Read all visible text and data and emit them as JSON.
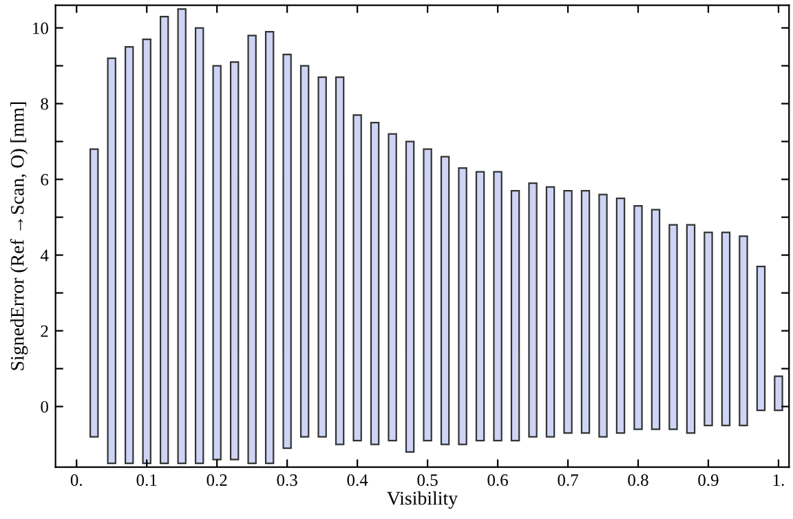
{
  "chart_data": {
    "type": "bar",
    "xlabel": "Visibility",
    "ylabel": "SignedError (Ref →Scan, O) [mm]",
    "x": [
      0.025,
      0.05,
      0.075,
      0.1,
      0.125,
      0.15,
      0.175,
      0.2,
      0.225,
      0.25,
      0.275,
      0.3,
      0.325,
      0.35,
      0.375,
      0.4,
      0.425,
      0.45,
      0.475,
      0.5,
      0.525,
      0.55,
      0.575,
      0.6,
      0.625,
      0.65,
      0.675,
      0.7,
      0.725,
      0.75,
      0.775,
      0.8,
      0.825,
      0.85,
      0.875,
      0.9,
      0.925,
      0.95,
      0.975,
      1.0
    ],
    "base": [
      -0.8,
      -1.5,
      -1.5,
      -1.5,
      -1.5,
      -1.5,
      -1.5,
      -1.4,
      -1.4,
      -1.5,
      -1.5,
      -1.1,
      -0.8,
      -0.8,
      -1.0,
      -0.9,
      -1.0,
      -0.9,
      -1.2,
      -0.9,
      -1.0,
      -1.0,
      -0.9,
      -0.9,
      -0.9,
      -0.8,
      -0.8,
      -0.7,
      -0.7,
      -0.8,
      -0.7,
      -0.6,
      -0.6,
      -0.6,
      -0.7,
      -0.5,
      -0.5,
      -0.5,
      -0.1,
      -0.1
    ],
    "values": [
      7.6,
      10.7,
      11.0,
      11.2,
      11.8,
      12.0,
      11.5,
      10.4,
      10.5,
      11.3,
      11.4,
      10.4,
      9.8,
      9.5,
      9.7,
      8.6,
      8.5,
      8.1,
      8.2,
      7.7,
      7.6,
      7.3,
      7.1,
      7.1,
      6.6,
      6.7,
      6.6,
      6.4,
      6.4,
      6.4,
      6.2,
      5.9,
      5.8,
      5.4,
      5.5,
      5.1,
      5.1,
      5.0,
      3.8,
      0.9
    ],
    "color": "#cdd4f5",
    "xlim": [
      -0.03,
      1.015
    ],
    "ylim": [
      -1.6,
      10.6
    ],
    "xticks": [
      {
        "value": 0,
        "label": "0."
      },
      0.1,
      0.2,
      0.3,
      0.4,
      0.5,
      0.6,
      0.7,
      0.8,
      0.9,
      {
        "value": 1,
        "label": "1."
      }
    ],
    "yticks": [
      0,
      {
        "value": 1,
        "label": null
      },
      2,
      {
        "value": 3,
        "label": null
      },
      4,
      {
        "value": 5,
        "label": null
      },
      6,
      {
        "value": 7,
        "label": null
      },
      8,
      {
        "value": 9,
        "label": null
      },
      10
    ],
    "grid": false
  }
}
